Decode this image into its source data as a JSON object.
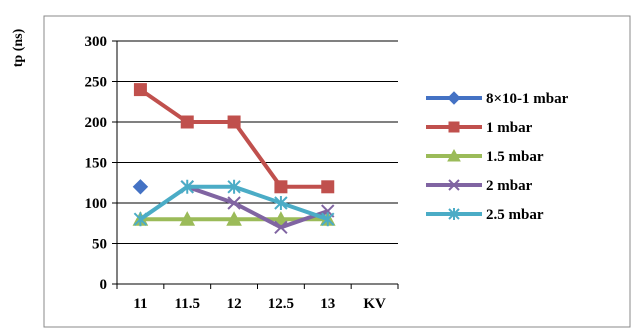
{
  "chart_data": {
    "type": "line",
    "title": "",
    "ylabel": "tp (ns)",
    "xunit": "KV",
    "categories": [
      "11",
      "11.5",
      "12",
      "12.5",
      "13"
    ],
    "ylim": [
      0,
      300
    ],
    "yticks": [
      0,
      50,
      100,
      150,
      200,
      250,
      300
    ],
    "legend_position": "right",
    "series": [
      {
        "name": "8×10-1  mbar",
        "color": "#4472C4",
        "marker": "diamond",
        "values": [
          120,
          null,
          null,
          null,
          null
        ]
      },
      {
        "name": "1  mbar",
        "color": "#C0504D",
        "marker": "square",
        "values": [
          240,
          200,
          200,
          120,
          120
        ]
      },
      {
        "name": "1.5  mbar",
        "color": "#9BBB59",
        "marker": "triangle",
        "values": [
          80,
          80,
          80,
          80,
          80
        ]
      },
      {
        "name": "2  mbar",
        "color": "#8064A2",
        "marker": "x",
        "values": [
          null,
          120,
          100,
          70,
          90
        ]
      },
      {
        "name": "2.5  mbar",
        "color": "#4BACC6",
        "marker": "star",
        "values": [
          80,
          120,
          120,
          100,
          80
        ]
      }
    ]
  }
}
